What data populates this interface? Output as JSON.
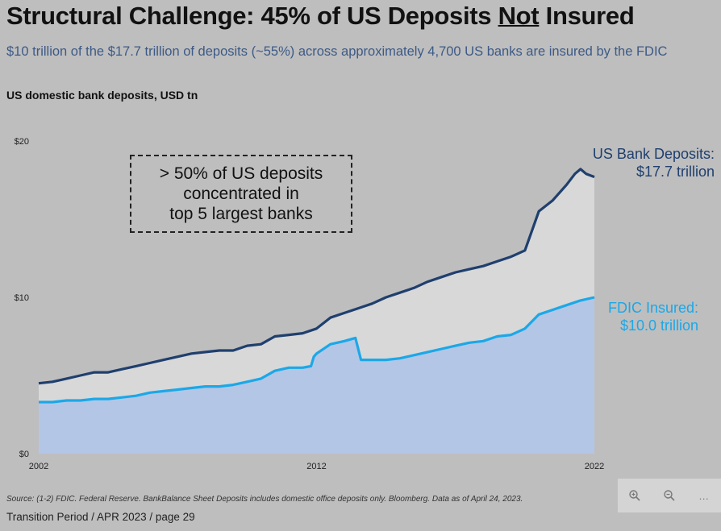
{
  "page": {
    "title_pre": "Structural Challenge: 45% of US Deposits ",
    "title_emph": "Not",
    "title_post": " Insured",
    "subtitle": "$10 trillion of the $17.7 trillion of deposits (~55%) across approximately 4,700 US banks are insured by the FDIC",
    "chart_heading": "US domestic bank deposits, USD tn",
    "annotation_lines": [
      "> 50% of US deposits",
      "concentrated in",
      "top 5 largest banks"
    ],
    "footnote": "Source: (1-2) FDIC. Federal Reserve. BankBalance Sheet Deposits includes domestic office deposits only. Bloomberg. Data as of April 24, 2023.",
    "footer": "Transition Period / APR 2023 / page 29"
  },
  "toolbar": {
    "zoom_in_icon": "magnifier-plus-icon",
    "zoom_out_icon": "magnifier-minus-icon",
    "more_label": "…"
  },
  "colors": {
    "deposits_line": "#1f3f6e",
    "deposits_fill": "#d8d8d8",
    "insured_line": "#1ba8e8",
    "insured_fill": "#b3c6e6",
    "background": "#bebebe"
  },
  "chart_data": {
    "type": "area",
    "ylim": [
      0,
      20
    ],
    "xlim": [
      2002,
      2022
    ],
    "y_ticks": [
      {
        "value": 0,
        "label": "$0"
      },
      {
        "value": 10,
        "label": "$10"
      },
      {
        "value": 20,
        "label": "$20"
      }
    ],
    "x_ticks": [
      {
        "value": 2002,
        "label": "2002"
      },
      {
        "value": 2012,
        "label": "2012"
      },
      {
        "value": 2022,
        "label": "2022"
      }
    ],
    "series": [
      {
        "name": "US Bank Deposits",
        "end_label_lines": [
          "US Bank Deposits:",
          "$17.7 trillion"
        ],
        "points": [
          [
            2002.0,
            4.5
          ],
          [
            2002.5,
            4.6
          ],
          [
            2003.0,
            4.8
          ],
          [
            2003.5,
            5.0
          ],
          [
            2004.0,
            5.2
          ],
          [
            2004.5,
            5.2
          ],
          [
            2005.0,
            5.4
          ],
          [
            2005.5,
            5.6
          ],
          [
            2006.0,
            5.8
          ],
          [
            2006.5,
            6.0
          ],
          [
            2007.0,
            6.2
          ],
          [
            2007.5,
            6.4
          ],
          [
            2008.0,
            6.5
          ],
          [
            2008.5,
            6.6
          ],
          [
            2009.0,
            6.6
          ],
          [
            2009.5,
            6.9
          ],
          [
            2010.0,
            7.0
          ],
          [
            2010.5,
            7.5
          ],
          [
            2011.0,
            7.6
          ],
          [
            2011.5,
            7.7
          ],
          [
            2012.0,
            8.0
          ],
          [
            2012.5,
            8.7
          ],
          [
            2013.0,
            9.0
          ],
          [
            2013.5,
            9.3
          ],
          [
            2014.0,
            9.6
          ],
          [
            2014.5,
            10.0
          ],
          [
            2015.0,
            10.3
          ],
          [
            2015.5,
            10.6
          ],
          [
            2016.0,
            11.0
          ],
          [
            2016.5,
            11.3
          ],
          [
            2017.0,
            11.6
          ],
          [
            2017.5,
            11.8
          ],
          [
            2018.0,
            12.0
          ],
          [
            2018.5,
            12.3
          ],
          [
            2019.0,
            12.6
          ],
          [
            2019.5,
            13.0
          ],
          [
            2020.0,
            15.5
          ],
          [
            2020.5,
            16.2
          ],
          [
            2021.0,
            17.2
          ],
          [
            2021.3,
            17.9
          ],
          [
            2021.5,
            18.2
          ],
          [
            2021.7,
            17.9
          ],
          [
            2022.0,
            17.7
          ]
        ]
      },
      {
        "name": "FDIC Insured",
        "end_label_lines": [
          "FDIC Insured:",
          "$10.0 trillion"
        ],
        "points": [
          [
            2002.0,
            3.3
          ],
          [
            2002.5,
            3.3
          ],
          [
            2003.0,
            3.4
          ],
          [
            2003.5,
            3.4
          ],
          [
            2004.0,
            3.5
          ],
          [
            2004.5,
            3.5
          ],
          [
            2005.0,
            3.6
          ],
          [
            2005.5,
            3.7
          ],
          [
            2006.0,
            3.9
          ],
          [
            2006.5,
            4.0
          ],
          [
            2007.0,
            4.1
          ],
          [
            2007.5,
            4.2
          ],
          [
            2008.0,
            4.3
          ],
          [
            2008.5,
            4.3
          ],
          [
            2009.0,
            4.4
          ],
          [
            2009.5,
            4.6
          ],
          [
            2010.0,
            4.8
          ],
          [
            2010.5,
            5.3
          ],
          [
            2011.0,
            5.5
          ],
          [
            2011.5,
            5.5
          ],
          [
            2011.8,
            5.6
          ],
          [
            2011.9,
            6.2
          ],
          [
            2012.0,
            6.4
          ],
          [
            2012.5,
            7.0
          ],
          [
            2013.0,
            7.2
          ],
          [
            2013.4,
            7.4
          ],
          [
            2013.6,
            6.0
          ],
          [
            2014.0,
            6.0
          ],
          [
            2014.5,
            6.0
          ],
          [
            2015.0,
            6.1
          ],
          [
            2015.5,
            6.3
          ],
          [
            2016.0,
            6.5
          ],
          [
            2016.5,
            6.7
          ],
          [
            2017.0,
            6.9
          ],
          [
            2017.5,
            7.1
          ],
          [
            2018.0,
            7.2
          ],
          [
            2018.5,
            7.5
          ],
          [
            2019.0,
            7.6
          ],
          [
            2019.5,
            8.0
          ],
          [
            2020.0,
            8.9
          ],
          [
            2020.5,
            9.2
          ],
          [
            2021.0,
            9.5
          ],
          [
            2021.5,
            9.8
          ],
          [
            2022.0,
            10.0
          ]
        ]
      }
    ]
  }
}
